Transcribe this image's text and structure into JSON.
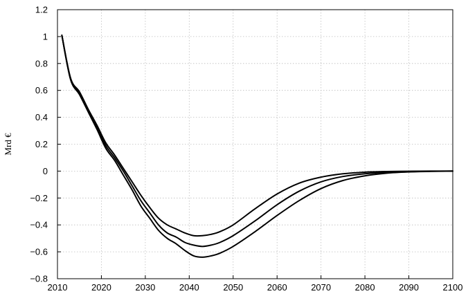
{
  "chart_data": {
    "type": "line",
    "title": "",
    "xlabel": "",
    "ylabel": "Mrd €",
    "xlim": [
      2010,
      2100
    ],
    "ylim": [
      -0.8,
      1.2
    ],
    "grid": true,
    "x_ticks": [
      2010,
      2020,
      2030,
      2040,
      2050,
      2060,
      2070,
      2080,
      2090,
      2100
    ],
    "y_ticks": [
      -0.8,
      -0.6,
      -0.4,
      -0.2,
      0,
      0.2,
      0.4,
      0.6,
      0.8,
      1,
      1.2
    ],
    "x_tick_labels": [
      "2010",
      "2020",
      "2030",
      "2040",
      "2050",
      "2060",
      "2070",
      "2080",
      "2090",
      "2100"
    ],
    "y_tick_labels": [
      "−0.8",
      "−0.6",
      "−0.4",
      "−0.2",
      "0",
      "0.2",
      "0.4",
      "0.6",
      "0.8",
      "1",
      "1.2"
    ],
    "x": [
      2011,
      2013,
      2015,
      2017,
      2019,
      2021,
      2023,
      2025,
      2027,
      2029,
      2031,
      2033,
      2035,
      2037,
      2039,
      2041,
      2043,
      2045,
      2047,
      2050,
      2055,
      2060,
      2065,
      2070,
      2075,
      2080,
      2085,
      2090,
      2095,
      2100
    ],
    "series": [
      {
        "values": [
          1.01,
          0.69,
          0.59,
          0.46,
          0.34,
          0.21,
          0.12,
          0.02,
          -0.08,
          -0.18,
          -0.27,
          -0.35,
          -0.4,
          -0.43,
          -0.46,
          -0.48,
          -0.48,
          -0.47,
          -0.45,
          -0.4,
          -0.28,
          -0.17,
          -0.09,
          -0.045,
          -0.02,
          -0.008,
          -0.003,
          -0.001,
          0,
          0
        ]
      },
      {
        "values": [
          1.01,
          0.68,
          0.58,
          0.45,
          0.33,
          0.19,
          0.1,
          0.0,
          -0.11,
          -0.22,
          -0.31,
          -0.4,
          -0.46,
          -0.49,
          -0.53,
          -0.55,
          -0.56,
          -0.55,
          -0.53,
          -0.48,
          -0.37,
          -0.25,
          -0.15,
          -0.08,
          -0.04,
          -0.02,
          -0.008,
          -0.003,
          -0.001,
          0
        ]
      },
      {
        "values": [
          1.01,
          0.68,
          0.57,
          0.44,
          0.31,
          0.17,
          0.08,
          -0.03,
          -0.14,
          -0.26,
          -0.35,
          -0.44,
          -0.5,
          -0.54,
          -0.59,
          -0.63,
          -0.64,
          -0.63,
          -0.61,
          -0.56,
          -0.45,
          -0.33,
          -0.22,
          -0.13,
          -0.07,
          -0.035,
          -0.015,
          -0.006,
          -0.002,
          0
        ]
      }
    ]
  }
}
